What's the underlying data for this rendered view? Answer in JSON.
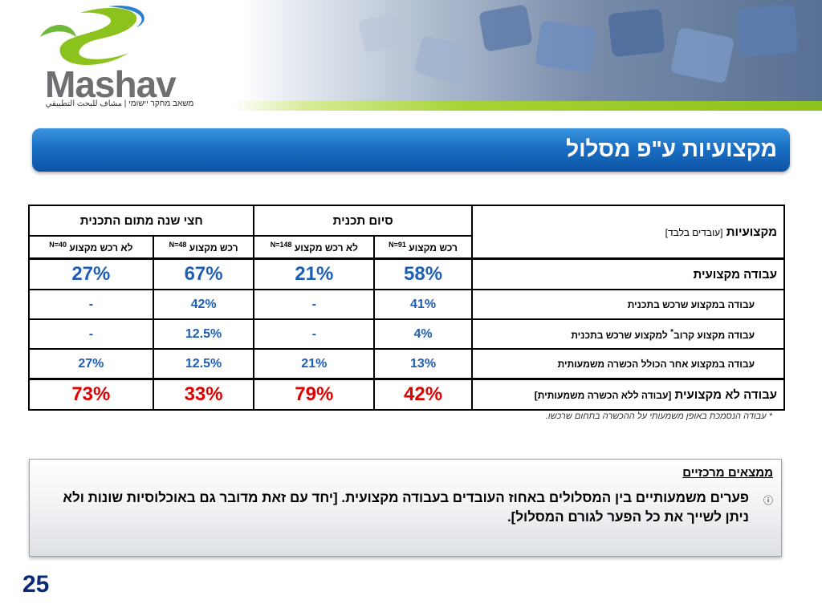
{
  "logo": {
    "name": "Mashav",
    "tagline": "משאב מחקר יישומי | مشاف للبحث التطبيقي"
  },
  "title": "מקצועיות ע\"פ מסלול",
  "table": {
    "group_half_year": "חצי שנה מתום התכנית",
    "group_end": "סיום תכנית",
    "row_header": "מקצועיות",
    "row_header_sub": "[עובדים בלבד]",
    "sub_headers": [
      {
        "label": "רכש מקצוע",
        "n": "N=91"
      },
      {
        "label": "לא רכש מקצוע",
        "n": "N=148"
      },
      {
        "label": "רכש מקצוע",
        "n": "N=48"
      },
      {
        "label": "לא רכש מקצוע",
        "n": "N=40"
      }
    ],
    "rows": [
      {
        "label": "עבודה מקצועית",
        "values": [
          "58%",
          "21%",
          "67%",
          "27%"
        ]
      },
      {
        "label": "עבודה במקצוע שרכש בתכנית",
        "values": [
          "41%",
          "-",
          "42%",
          "-"
        ]
      },
      {
        "label": "עבודה מקצוע קרוב",
        "label_sup": "*",
        "label_rest": " למקצוע שרכש בתכנית",
        "values": [
          "4%",
          "-",
          "12.5%",
          "-"
        ]
      },
      {
        "label": "עבודה במקצוע אחר הכולל הכשרה משמעותית",
        "values": [
          "13%",
          "21%",
          "12.5%",
          "27%"
        ]
      },
      {
        "label": "עבודה לא מקצועית",
        "label_sub": "[עבודה ללא הכשרה משמעותית]",
        "values": [
          "42%",
          "79%",
          "33%",
          "73%"
        ]
      }
    ]
  },
  "footnote": "* עבודה הנסמכת באופן משמעותי על ההכשרה בתחום שרכשו.",
  "findings": {
    "title": "ממצאים מרכזיים",
    "bullet": "פערים משמעותיים בין המסלולים באחוז העובדים בעבודה מקצועית. [יחד עם זאת מדובר גם באוכלוסיות שונות ולא ניתן לשייך את כל הפער לגורם המסלול]."
  },
  "page_number": "25"
}
